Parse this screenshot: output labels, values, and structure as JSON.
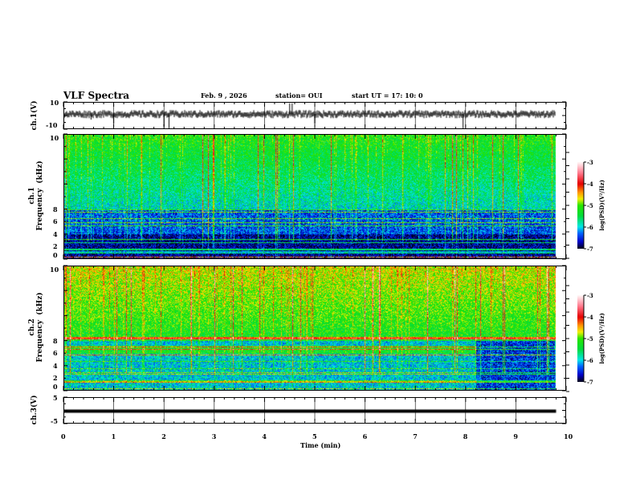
{
  "header": {
    "title": "VLF Spectra",
    "date": "Feb. 9  , 2026",
    "station": "station= OUI",
    "start": "start  UT =   17: 10: 0"
  },
  "chart_data": [
    {
      "type": "line",
      "name": "ch1-waveform",
      "ylabel": "ch.1(V)",
      "ylim": [
        -10,
        10
      ],
      "yticks": [
        "10",
        "-10"
      ],
      "baseline": 1,
      "spikes": [
        {
          "t": 0.55,
          "v": -3
        },
        {
          "t": 1.0,
          "v": -6
        },
        {
          "t": 2.0,
          "v": -8
        },
        {
          "t": 2.1,
          "v": -10
        },
        {
          "t": 4.5,
          "v": 9
        },
        {
          "t": 4.55,
          "v": 9
        },
        {
          "t": 5.0,
          "v": -6
        },
        {
          "t": 7.95,
          "v": -10
        }
      ]
    },
    {
      "type": "heatmap",
      "name": "ch1-spectrogram",
      "ylabel": "ch.1\nFrequency  (kHz)",
      "ylim": [
        0,
        10
      ],
      "yticks": [
        "0",
        "2",
        "4",
        "6",
        "8",
        "10"
      ],
      "colorbar": {
        "label": "log(PSD)(V²/Hz)",
        "range": [
          -7,
          -3
        ],
        "ticks": [
          "-3",
          "-4",
          "-5",
          "-6",
          "-7"
        ]
      },
      "data_end_min": 9.8
    },
    {
      "type": "heatmap",
      "name": "ch2-spectrogram",
      "ylabel": "ch.2\nFrequency  (kHz)",
      "ylim": [
        0,
        10
      ],
      "yticks": [
        "0",
        "2",
        "4",
        "6",
        "8",
        "10"
      ],
      "colorbar": {
        "label": "log(PSD)(V²/Hz)",
        "range": [
          -7,
          -3
        ],
        "ticks": [
          "-3",
          "-4",
          "-5",
          "-6",
          "-7"
        ]
      },
      "band_change_min": 8.2,
      "data_end_min": 9.8
    },
    {
      "type": "line",
      "name": "ch3-waveform",
      "ylabel": "ch.3(V)",
      "ylim": [
        -5,
        5
      ],
      "yticks": [
        "5",
        "-5"
      ],
      "value": -0.3,
      "data_end_min": 9.8
    }
  ],
  "xaxis": {
    "label": "Time  (min)",
    "range": [
      0,
      10
    ],
    "ticks": [
      "0",
      "1",
      "2",
      "3",
      "4",
      "5",
      "6",
      "7",
      "8",
      "9",
      "10"
    ]
  }
}
